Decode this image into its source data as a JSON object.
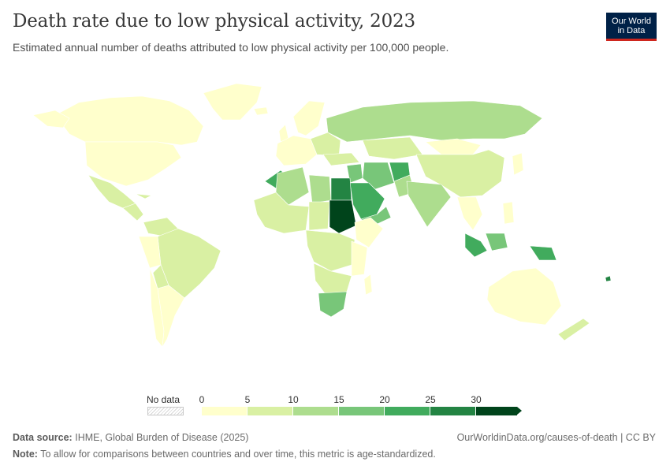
{
  "title": "Death rate due to low physical activity, 2023",
  "subtitle": "Estimated annual number of deaths attributed to low physical activity per 100,000 people.",
  "logo": {
    "line1": "Our World",
    "line2": "in Data"
  },
  "legend": {
    "no_data_label": "No data",
    "ticks": [
      "0",
      "5",
      "10",
      "15",
      "20",
      "25",
      "30"
    ],
    "colors": [
      "#ffffcc",
      "#d9f0a3",
      "#addd8e",
      "#78c679",
      "#41ab5d",
      "#238443",
      "#00441b"
    ]
  },
  "chart_data": {
    "type": "choropleth",
    "title": "Death rate due to low physical activity, 2023",
    "unit": "deaths per 100,000 people",
    "bins": [
      0,
      5,
      10,
      15,
      20,
      25,
      30
    ],
    "regions": [
      {
        "name": "Canada",
        "value_range": "0-5"
      },
      {
        "name": "United States",
        "value_range": "0-5"
      },
      {
        "name": "Greenland",
        "value_range": "0-5"
      },
      {
        "name": "Mexico",
        "value_range": "5-10"
      },
      {
        "name": "Brazil",
        "value_range": "5-10"
      },
      {
        "name": "Argentina",
        "value_range": "0-5"
      },
      {
        "name": "Russia",
        "value_range": "10-15"
      },
      {
        "name": "China",
        "value_range": "5-10"
      },
      {
        "name": "India",
        "value_range": "10-15"
      },
      {
        "name": "Australia",
        "value_range": "0-5"
      },
      {
        "name": "Sudan",
        "value_range": "30+"
      },
      {
        "name": "Egypt",
        "value_range": "25-30"
      },
      {
        "name": "Saudi Arabia",
        "value_range": "20-25"
      },
      {
        "name": "Afghanistan",
        "value_range": "20-25"
      },
      {
        "name": "South Africa",
        "value_range": "15-20"
      },
      {
        "name": "Indonesia",
        "value_range": "15-20"
      }
    ]
  },
  "footer": {
    "source_label": "Data source:",
    "source_text": "IHME, Global Burden of Disease (2025)",
    "url": "OurWorldinData.org/causes-of-death | CC BY",
    "note_label": "Note:",
    "note_text": "To allow for comparisons between countries and over time, this metric is age-standardized."
  }
}
